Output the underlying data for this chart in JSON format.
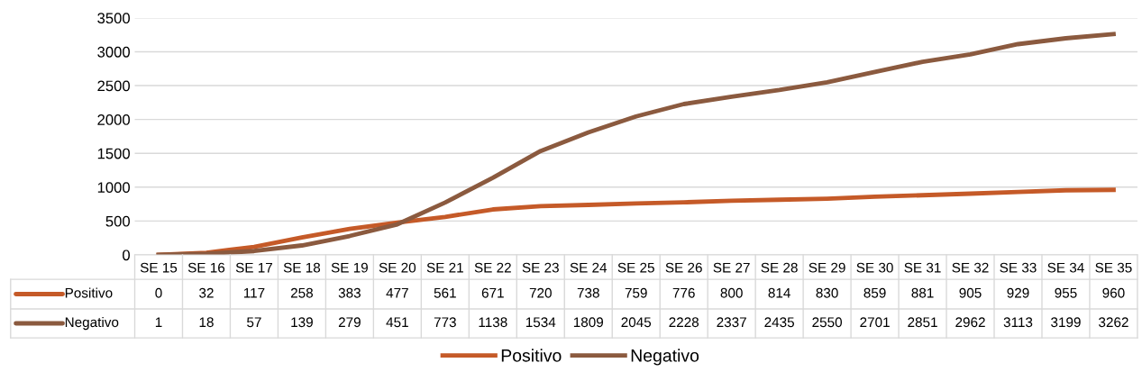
{
  "chart_data": {
    "type": "line",
    "categories": [
      "SE 15",
      "SE 16",
      "SE 17",
      "SE 18",
      "SE 19",
      "SE 20",
      "SE 21",
      "SE 22",
      "SE 23",
      "SE 24",
      "SE 25",
      "SE 26",
      "SE 27",
      "SE 28",
      "SE 29",
      "SE 30",
      "SE 31",
      "SE 32",
      "SE 33",
      "SE 34",
      "SE 35"
    ],
    "series": [
      {
        "name": "Positivo",
        "color": "#c55a28",
        "values": [
          0,
          32,
          117,
          258,
          383,
          477,
          561,
          671,
          720,
          738,
          759,
          776,
          800,
          814,
          830,
          859,
          881,
          905,
          929,
          955,
          960
        ]
      },
      {
        "name": "Negativo",
        "color": "#8b5a3f",
        "values": [
          1,
          18,
          57,
          139,
          279,
          451,
          773,
          1138,
          1534,
          1809,
          2045,
          2228,
          2337,
          2435,
          2550,
          2701,
          2851,
          2962,
          3113,
          3199,
          3262
        ]
      }
    ],
    "ylim": [
      0,
      3500
    ],
    "yticks": [
      0,
      500,
      1000,
      1500,
      2000,
      2500,
      3000,
      3500
    ],
    "grid": "y",
    "legend": "bottom",
    "data_labels": true,
    "marker": "none",
    "line_style": "solid"
  }
}
